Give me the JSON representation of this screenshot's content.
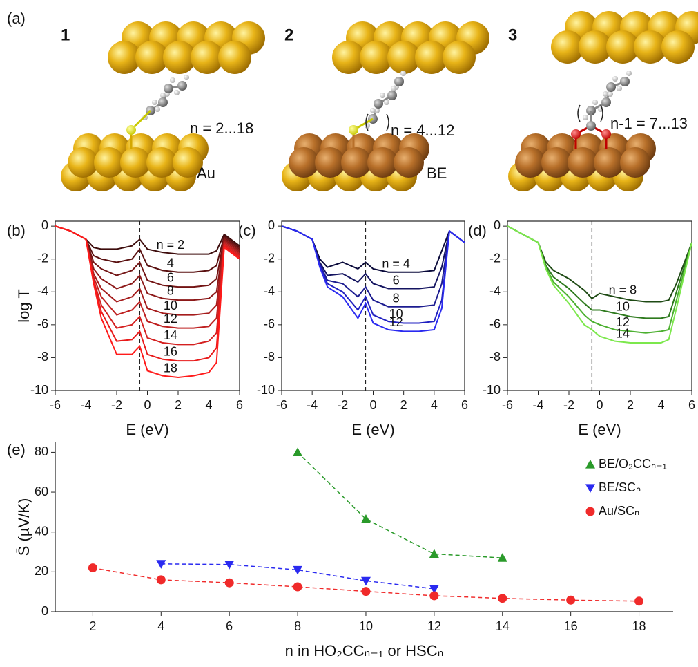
{
  "diagram": {
    "label": "(a)",
    "structures": [
      {
        "number": "1",
        "range": "n = 2...18",
        "surface": "Au"
      },
      {
        "number": "2",
        "range": "n = 4...12",
        "surface": "BE"
      },
      {
        "number": "3",
        "range": "n-1 = 7...13"
      }
    ]
  },
  "chart_data": [
    {
      "type": "line",
      "panel_label": "(b)",
      "xlabel": "E (eV)",
      "ylabel": "log T",
      "x": [
        -6,
        -5,
        -4,
        -3.5,
        -3,
        -2,
        -1,
        -0.5,
        0,
        1,
        2,
        3,
        4,
        4.5,
        5,
        6
      ],
      "xlim": [
        -6,
        6
      ],
      "ylim": [
        -10,
        0.3
      ],
      "xticks": [
        -6,
        -4,
        -2,
        0,
        2,
        4,
        6
      ],
      "yticks": [
        0,
        -2,
        -4,
        -6,
        -8,
        -10
      ],
      "vline": -0.5,
      "curve_labels": true,
      "frame": true,
      "series": [
        {
          "name": "n = 2",
          "color": "#3d0c0c",
          "values": [
            0,
            -0.3,
            -0.8,
            -1.3,
            -1.4,
            -1.4,
            -1.2,
            -0.8,
            -1.4,
            -1.6,
            -1.7,
            -1.7,
            -1.7,
            -1.5,
            -0.5,
            -1.2
          ]
        },
        {
          "name": "4",
          "color": "#5a1010",
          "values": [
            0,
            -0.3,
            -0.8,
            -1.8,
            -2.0,
            -2.2,
            -2.0,
            -1.4,
            -2.4,
            -2.7,
            -2.8,
            -2.8,
            -2.7,
            -2.4,
            -0.6,
            -1.3
          ]
        },
        {
          "name": "6",
          "color": "#731414",
          "values": [
            0,
            -0.3,
            -0.8,
            -2.2,
            -2.6,
            -3.0,
            -2.7,
            -2.2,
            -3.3,
            -3.6,
            -3.7,
            -3.7,
            -3.6,
            -3.2,
            -0.7,
            -1.4
          ]
        },
        {
          "name": "8",
          "color": "#8c1818",
          "values": [
            0,
            -0.3,
            -0.8,
            -2.6,
            -3.2,
            -3.8,
            -3.5,
            -3.0,
            -4.1,
            -4.4,
            -4.5,
            -4.5,
            -4.4,
            -4.0,
            -0.8,
            -1.5
          ]
        },
        {
          "name": "10",
          "color": "#a51c1c",
          "values": [
            0,
            -0.3,
            -0.8,
            -2.9,
            -3.8,
            -4.6,
            -4.3,
            -3.8,
            -5.0,
            -5.3,
            -5.4,
            -5.4,
            -5.3,
            -4.8,
            -0.9,
            -1.6
          ]
        },
        {
          "name": "12",
          "color": "#be2020",
          "values": [
            0,
            -0.3,
            -0.8,
            -3.1,
            -4.3,
            -5.4,
            -5.1,
            -4.6,
            -5.8,
            -6.1,
            -6.2,
            -6.2,
            -6.1,
            -5.6,
            -1.0,
            -1.7
          ]
        },
        {
          "name": "14",
          "color": "#d42020",
          "values": [
            0,
            -0.3,
            -0.8,
            -3.3,
            -4.8,
            -6.2,
            -6.0,
            -5.5,
            -6.8,
            -7.1,
            -7.2,
            -7.2,
            -7.0,
            -6.5,
            -1.1,
            -1.8
          ]
        },
        {
          "name": "16",
          "color": "#e81a1a",
          "values": [
            0,
            -0.3,
            -0.8,
            -3.4,
            -5.2,
            -7.0,
            -6.9,
            -6.4,
            -7.8,
            -8.1,
            -8.2,
            -8.2,
            -8.0,
            -7.4,
            -1.2,
            -1.9
          ]
        },
        {
          "name": "18",
          "color": "#ff1a1a",
          "values": [
            0,
            -0.3,
            -0.8,
            -3.5,
            -5.6,
            -7.8,
            -7.8,
            -7.3,
            -8.8,
            -9.1,
            -9.2,
            -9.1,
            -8.9,
            -8.3,
            -1.3,
            -2.0
          ]
        }
      ]
    },
    {
      "type": "line",
      "panel_label": "(c)",
      "xlabel": "E (eV)",
      "x": [
        -6,
        -5,
        -4,
        -3.5,
        -3,
        -2,
        -1,
        -0.5,
        0,
        1,
        2,
        3,
        4,
        4.5,
        5,
        6
      ],
      "xlim": [
        -6,
        6
      ],
      "ylim": [
        -10,
        0.3
      ],
      "xticks": [
        -6,
        -4,
        -2,
        0,
        2,
        4,
        6
      ],
      "yticks": [
        0,
        -2,
        -4,
        -6,
        -8,
        -10
      ],
      "vline": -0.5,
      "curve_labels": true,
      "frame": true,
      "series": [
        {
          "name": "n = 4",
          "color": "#0a0a3a",
          "values": [
            0,
            -0.3,
            -0.8,
            -2.0,
            -2.5,
            -2.2,
            -2.6,
            -2.2,
            -2.6,
            -2.8,
            -2.8,
            -2.8,
            -2.7,
            -1.5,
            -0.3,
            -1.0
          ]
        },
        {
          "name": "6",
          "color": "#141460",
          "values": [
            0,
            -0.3,
            -0.8,
            -2.2,
            -3.0,
            -2.9,
            -3.4,
            -2.9,
            -3.5,
            -3.8,
            -3.8,
            -3.8,
            -3.7,
            -2.5,
            -0.3,
            -1.0
          ]
        },
        {
          "name": "8",
          "color": "#1c1c90",
          "values": [
            0,
            -0.3,
            -0.8,
            -2.3,
            -3.3,
            -3.5,
            -4.3,
            -3.7,
            -4.5,
            -4.9,
            -4.9,
            -4.9,
            -4.8,
            -3.5,
            -0.3,
            -1.0
          ]
        },
        {
          "name": "10",
          "color": "#2020c0",
          "values": [
            0,
            -0.3,
            -0.8,
            -2.4,
            -3.5,
            -4.0,
            -5.1,
            -4.3,
            -5.4,
            -5.8,
            -5.9,
            -5.9,
            -5.8,
            -4.5,
            -0.3,
            -1.0
          ]
        },
        {
          "name": "12",
          "color": "#2a2af0",
          "values": [
            0,
            -0.3,
            -0.8,
            -2.5,
            -3.7,
            -4.3,
            -5.6,
            -4.7,
            -5.9,
            -6.3,
            -6.4,
            -6.4,
            -6.3,
            -5.0,
            -0.3,
            -1.0
          ]
        }
      ]
    },
    {
      "type": "line",
      "panel_label": "(d)",
      "xlabel": "E (eV)",
      "x": [
        -6,
        -5,
        -4,
        -3.5,
        -3,
        -2,
        -1,
        -0.5,
        0,
        1,
        2,
        3,
        4,
        4.5,
        5,
        6
      ],
      "xlim": [
        -6,
        6
      ],
      "ylim": [
        -10,
        0.3
      ],
      "xticks": [
        -6,
        -4,
        -2,
        0,
        2,
        4,
        6
      ],
      "yticks": [
        0,
        -2,
        -4,
        -6,
        -8,
        -10
      ],
      "vline": -0.5,
      "curve_labels": true,
      "frame": true,
      "series": [
        {
          "name": "n = 8",
          "color": "#1e4a14",
          "values": [
            0,
            -0.5,
            -1.0,
            -2.2,
            -2.7,
            -3.2,
            -3.9,
            -4.4,
            -4.1,
            -4.3,
            -4.5,
            -4.6,
            -4.6,
            -4.5,
            -3.5,
            -1.0
          ]
        },
        {
          "name": "10",
          "color": "#2e7a1e",
          "values": [
            0,
            -0.5,
            -1.0,
            -2.4,
            -3.1,
            -3.8,
            -4.7,
            -5.1,
            -5.1,
            -5.3,
            -5.5,
            -5.6,
            -5.6,
            -5.5,
            -4.0,
            -1.0
          ]
        },
        {
          "name": "12",
          "color": "#4cb030",
          "values": [
            0,
            -0.5,
            -1.0,
            -2.5,
            -3.4,
            -4.3,
            -5.4,
            -5.8,
            -6.0,
            -6.3,
            -6.4,
            -6.5,
            -6.4,
            -6.3,
            -4.5,
            -1.0
          ]
        },
        {
          "name": "14",
          "color": "#7ce84c",
          "values": [
            0,
            -0.5,
            -1.0,
            -2.6,
            -3.6,
            -4.7,
            -6.0,
            -6.3,
            -6.7,
            -7.0,
            -7.1,
            -7.1,
            -7.1,
            -6.9,
            -5.0,
            -1.0
          ]
        }
      ]
    },
    {
      "type": "line",
      "panel_label": "(e)",
      "xlabel": "n in HO₂CCₙ₋₁ or HSCₙ",
      "ylabel": "S̄ (µV/K)",
      "xlim": [
        0.9,
        19
      ],
      "ylim": [
        0,
        85
      ],
      "xticks": [
        2,
        4,
        6,
        8,
        10,
        12,
        14,
        16,
        18
      ],
      "yticks": [
        0,
        20,
        40,
        60,
        80
      ],
      "legend": "upper right",
      "linestyle": "dashed",
      "frame": false,
      "series": [
        {
          "name": "BE/O₂CCₙ₋₁",
          "color": "#2a9a2a",
          "marker": "^",
          "x": [
            8,
            10,
            12,
            14
          ],
          "values": [
            80,
            46.5,
            29,
            27
          ]
        },
        {
          "name": "BE/SCₙ",
          "color": "#2a2af0",
          "marker": "v",
          "x": [
            4,
            6,
            8,
            10,
            12
          ],
          "values": [
            24,
            23.7,
            21,
            15.5,
            11.5
          ]
        },
        {
          "name": "Au/SCₙ",
          "color": "#f02a2a",
          "marker": "o",
          "x": [
            2,
            4,
            6,
            8,
            10,
            12,
            14,
            16,
            18
          ],
          "values": [
            22,
            16,
            14.5,
            12.5,
            10.2,
            8,
            6.7,
            5.8,
            5.3
          ]
        }
      ]
    }
  ]
}
